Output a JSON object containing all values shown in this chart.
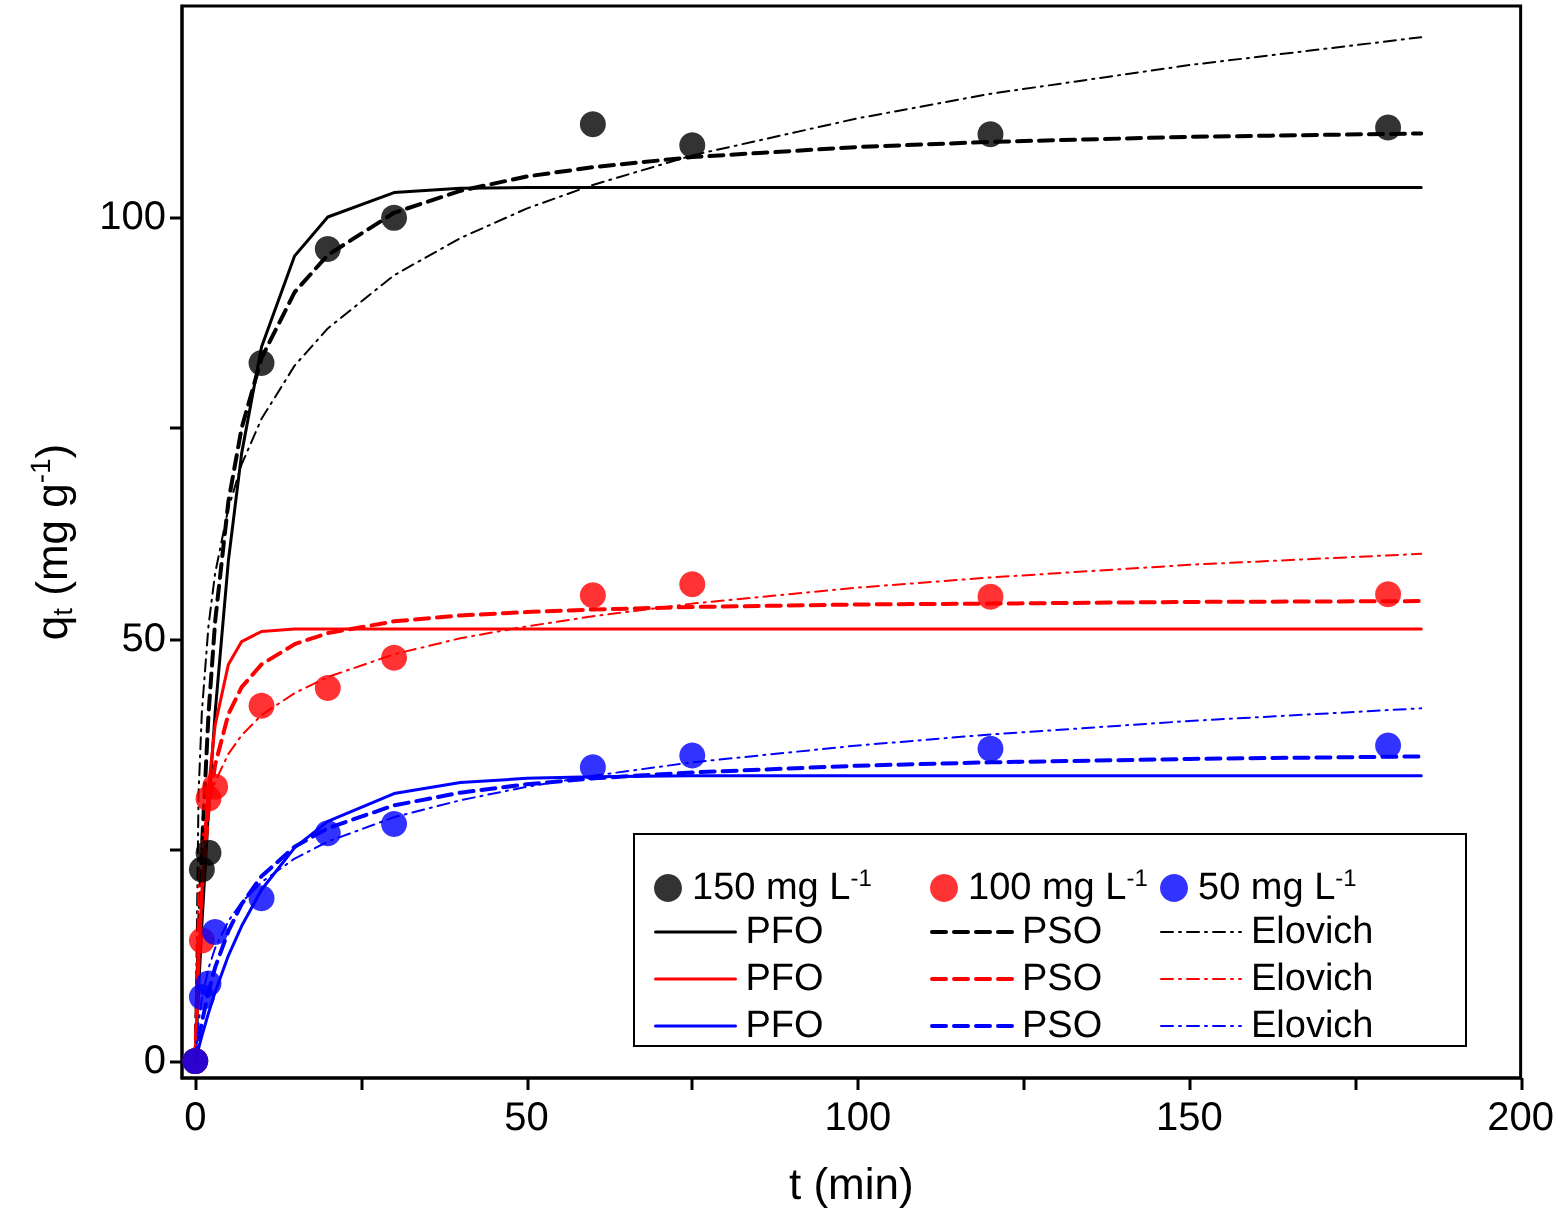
{
  "chart_data": {
    "type": "line",
    "xlabel": "t (min)",
    "ylabel": "q$_{t}$ (mg g$^{-1}$)",
    "xlim": [
      -2,
      200
    ],
    "ylim": [
      -2,
      125
    ],
    "xticks": [
      0,
      {
        "value": 25,
        "label": null
      },
      50,
      {
        "value": 75,
        "label": null
      },
      100,
      {
        "value": 125,
        "label": null
      },
      150,
      {
        "value": 175,
        "label": null
      },
      200
    ],
    "yticks": [
      0,
      {
        "value": 25,
        "label": null
      },
      50,
      {
        "value": 75,
        "label": null
      },
      100
    ],
    "grid": false,
    "legend": "bottom right",
    "marker": "circle",
    "series": [
      {
        "name": "150 mg L$^{-1}$",
        "type": "scatter",
        "color": "#000000",
        "x": [
          0,
          1,
          2,
          3,
          10,
          20,
          30,
          60,
          75,
          120,
          180
        ],
        "values": [
          0,
          22.7,
          24.7,
          null,
          82.7,
          96.2,
          99.9,
          111,
          108.5,
          109.8,
          110.6
        ]
      },
      {
        "name": "100 mg L$^{-1}$",
        "type": "scatter",
        "color": "#ff0000",
        "x": [
          0,
          1,
          2,
          3,
          10,
          20,
          30,
          60,
          75,
          120,
          180
        ],
        "values": [
          0,
          14.3,
          31.1,
          32.5,
          42.1,
          44.2,
          47.8,
          55.2,
          56.5,
          55.0,
          55.3
        ]
      },
      {
        "name": "50 mg L$^{-1}$",
        "type": "scatter",
        "color": "#0000ff",
        "x": [
          0,
          1,
          2,
          3,
          10,
          20,
          30,
          60,
          75,
          120,
          180
        ],
        "values": [
          0,
          7.6,
          9.2,
          15.3,
          19.3,
          27.0,
          28.1,
          34.8,
          36.2,
          37.0,
          37.4
        ]
      },
      {
        "name": "PFO",
        "type": "line",
        "color": "#000000",
        "line_style": "solid",
        "marker": "none",
        "x": [
          0,
          0.5,
          1,
          2,
          3,
          5,
          7,
          10,
          15,
          20,
          30,
          40,
          50,
          185
        ],
        "values": [
          0,
          8.4,
          16.2,
          29.8,
          41.3,
          59.3,
          72.0,
          84.6,
          95.4,
          100.0,
          102.9,
          103.4,
          103.5,
          103.5
        ]
      },
      {
        "name": "PSO",
        "type": "line",
        "color": "#000000",
        "line_style": "dashed",
        "marker": "none",
        "x": [
          0,
          0.5,
          1,
          2,
          3,
          5,
          7,
          10,
          15,
          20,
          30,
          40,
          50,
          60,
          75,
          100,
          120,
          150,
          185
        ],
        "values": [
          0,
          14.2,
          25.2,
          41.1,
          52.1,
          66.3,
          75.0,
          83.3,
          91.1,
          95.5,
          100.5,
          103.1,
          104.8,
          105.9,
          107.1,
          108.3,
          108.9,
          109.5,
          109.9
        ]
      },
      {
        "name": "Elovich",
        "type": "line",
        "color": "#000000",
        "line_style": "dashdot",
        "marker": "none",
        "x": [
          0,
          0.5,
          1,
          2,
          3,
          5,
          7,
          10,
          15,
          20,
          30,
          40,
          50,
          60,
          75,
          100,
          120,
          150,
          185
        ],
        "values": [
          0,
          31.7,
          41.4,
          51.6,
          57.8,
          65.5,
          70.7,
          76.1,
          82.4,
          86.8,
          93.1,
          97.5,
          101.0,
          103.8,
          107.3,
          111.7,
          114.6,
          118.0,
          121.3
        ]
      },
      {
        "name": "PFO",
        "type": "line",
        "color": "#ff0000",
        "line_style": "solid",
        "marker": "none",
        "x": [
          0,
          0.5,
          1,
          2,
          3,
          5,
          7,
          10,
          15,
          185
        ],
        "values": [
          0,
          11.3,
          20.1,
          32.4,
          39.8,
          47.0,
          49.7,
          50.9,
          51.2,
          51.2
        ]
      },
      {
        "name": "PSO",
        "type": "line",
        "color": "#ff0000",
        "line_style": "dashed",
        "marker": "none",
        "x": [
          0,
          0.5,
          1,
          2,
          3,
          5,
          7,
          10,
          15,
          20,
          30,
          40,
          50,
          60,
          75,
          100,
          120,
          150,
          185
        ],
        "values": [
          0,
          12.5,
          20.4,
          29.8,
          35.1,
          41.1,
          44.3,
          47.0,
          49.4,
          50.7,
          52.1,
          52.8,
          53.2,
          53.5,
          53.8,
          54.1,
          54.2,
          54.4,
          54.5
        ]
      },
      {
        "name": "Elovich",
        "type": "line",
        "color": "#ff0000",
        "line_style": "dashdot",
        "marker": "none",
        "x": [
          0,
          0.5,
          1,
          2,
          3,
          5,
          7,
          10,
          15,
          20,
          30,
          40,
          50,
          60,
          75,
          100,
          120,
          150,
          185
        ],
        "values": [
          0,
          21.5,
          26.0,
          30.5,
          33.1,
          36.4,
          38.6,
          41.0,
          43.6,
          45.5,
          48.2,
          50.1,
          51.5,
          52.7,
          54.2,
          56.1,
          57.3,
          58.8,
          60.1
        ]
      },
      {
        "name": "PFO",
        "type": "line",
        "color": "#0000ff",
        "line_style": "solid",
        "marker": "none",
        "x": [
          0,
          0.5,
          1,
          2,
          3,
          5,
          7,
          10,
          15,
          20,
          30,
          40,
          50,
          60,
          75,
          185
        ],
        "values": [
          0,
          1.5,
          3.0,
          5.7,
          8.2,
          12.5,
          16.0,
          20.3,
          25.3,
          28.4,
          31.7,
          33.0,
          33.5,
          33.7,
          33.8,
          33.8
        ]
      },
      {
        "name": "PSO",
        "type": "line",
        "color": "#0000ff",
        "line_style": "dashed",
        "marker": "none",
        "x": [
          0,
          0.5,
          1,
          2,
          3,
          5,
          7,
          10,
          15,
          20,
          30,
          40,
          50,
          60,
          75,
          100,
          120,
          150,
          185
        ],
        "values": [
          0,
          2.5,
          4.6,
          8.2,
          11.1,
          15.4,
          18.6,
          21.9,
          25.4,
          27.6,
          30.3,
          31.8,
          32.8,
          33.5,
          34.2,
          35.0,
          35.4,
          35.8,
          36.1
        ]
      },
      {
        "name": "Elovich",
        "type": "line",
        "color": "#0000ff",
        "line_style": "dashdot",
        "marker": "none",
        "x": [
          0,
          0.5,
          1,
          2,
          3,
          5,
          7,
          10,
          15,
          20,
          30,
          40,
          50,
          60,
          75,
          100,
          120,
          150,
          185
        ],
        "values": [
          0,
          4.6,
          7.4,
          11.0,
          13.4,
          16.6,
          18.8,
          21.2,
          24.0,
          26.0,
          28.9,
          30.9,
          32.5,
          33.8,
          35.4,
          37.4,
          38.7,
          40.3,
          41.8
        ]
      }
    ]
  }
}
